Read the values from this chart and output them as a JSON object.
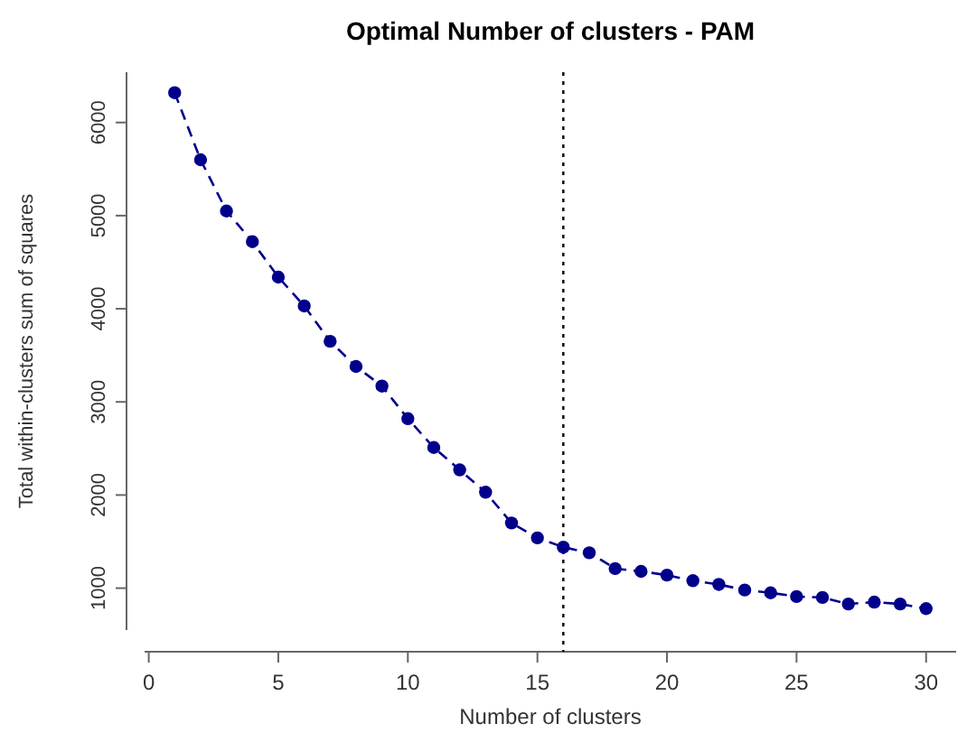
{
  "chart_data": {
    "type": "line",
    "title": "Optimal Number of clusters - PAM",
    "xlabel": "Number of clusters",
    "ylabel": "Total within-clusters sum of squares",
    "x": [
      1,
      2,
      3,
      4,
      5,
      6,
      7,
      8,
      9,
      10,
      11,
      12,
      13,
      14,
      15,
      16,
      17,
      18,
      19,
      20,
      21,
      22,
      23,
      24,
      25,
      26,
      27,
      28,
      29,
      30
    ],
    "series": [
      {
        "color": "#00008b",
        "values": [
          6320,
          5600,
          5050,
          4720,
          4340,
          4030,
          3650,
          3380,
          3170,
          2820,
          2510,
          2270,
          2030,
          1700,
          1540,
          1440,
          1380,
          1210,
          1180,
          1140,
          1080,
          1040,
          980,
          950,
          910,
          900,
          830,
          850,
          830,
          780
        ]
      }
    ],
    "xlim": [
      -0.16,
      31.16
    ],
    "ylim": [
      550,
      6540
    ],
    "xticks": [
      0,
      5,
      10,
      15,
      20,
      25,
      30
    ],
    "yticks": [
      1000,
      2000,
      3000,
      4000,
      5000,
      6000
    ],
    "marker": "circle",
    "line_style": "dashed",
    "grid": false,
    "ref_lines": [
      {
        "axis": "x",
        "value": 16,
        "color": "#000000",
        "line_style": "dotted"
      }
    ]
  }
}
